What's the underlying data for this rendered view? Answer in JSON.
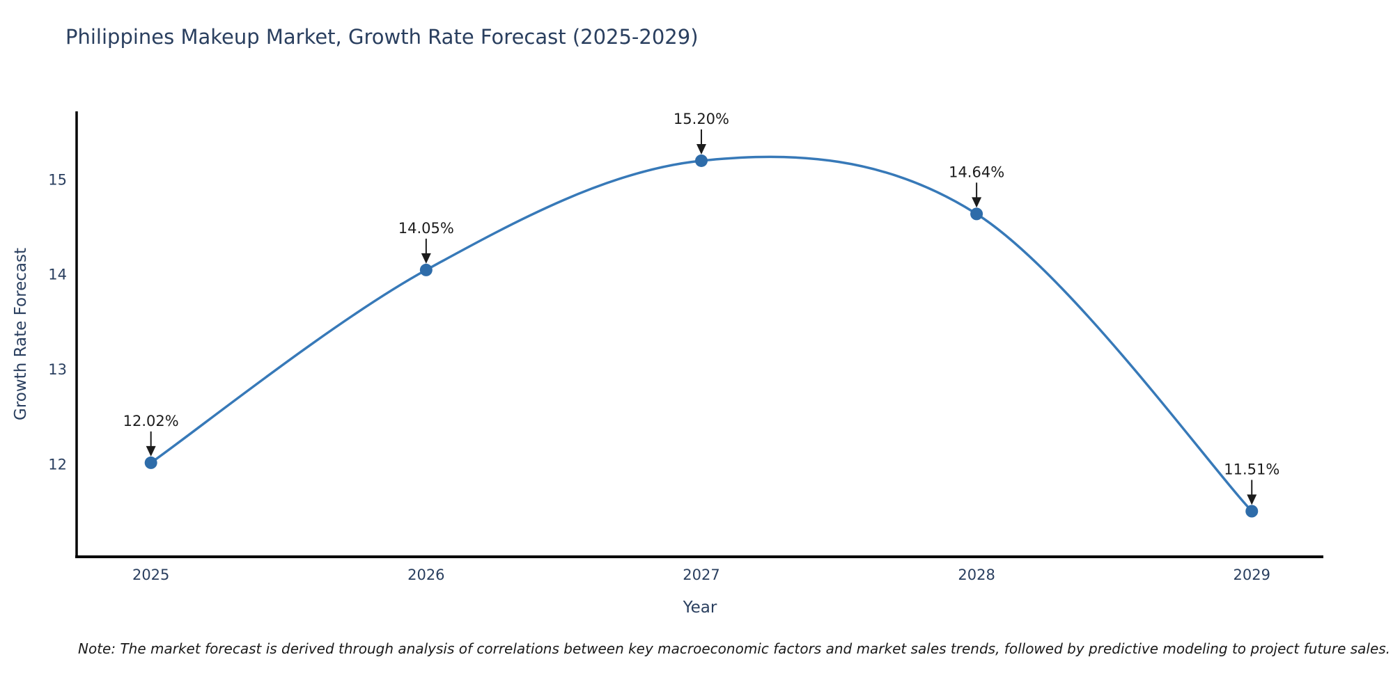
{
  "title": "Philippines Makeup Market, Growth Rate Forecast (2025-2029)",
  "note": "Note: The market forecast is derived through analysis of correlations between key macroeconomic factors and market sales trends, followed by predictive modeling to project future sales.",
  "chart_data": {
    "type": "line",
    "title": "Philippines Makeup Market, Growth Rate Forecast (2025-2029)",
    "xlabel": "Year",
    "ylabel": "Growth Rate Forecast",
    "x": [
      2025,
      2026,
      2027,
      2028,
      2029
    ],
    "series": [
      {
        "name": "Growth Rate Forecast",
        "values": [
          12.02,
          14.05,
          15.2,
          14.64,
          11.51
        ]
      }
    ],
    "point_labels": [
      "12.02%",
      "14.05%",
      "15.20%",
      "14.64%",
      "11.51%"
    ],
    "yticks": [
      12,
      13,
      14,
      15
    ],
    "xticks": [
      "2025",
      "2026",
      "2027",
      "2028",
      "2029"
    ],
    "xlim": [
      2024.73,
      2029.26
    ],
    "ylim": [
      11.03,
      15.72
    ],
    "grid": false,
    "legend": false,
    "line_shape": "spline",
    "line_color": "#3779b8",
    "marker_color": "#2e6ca9",
    "annotation_color": "#1c1c1c",
    "axis_color": "#000000",
    "tick_color": "#2a3f5f"
  }
}
